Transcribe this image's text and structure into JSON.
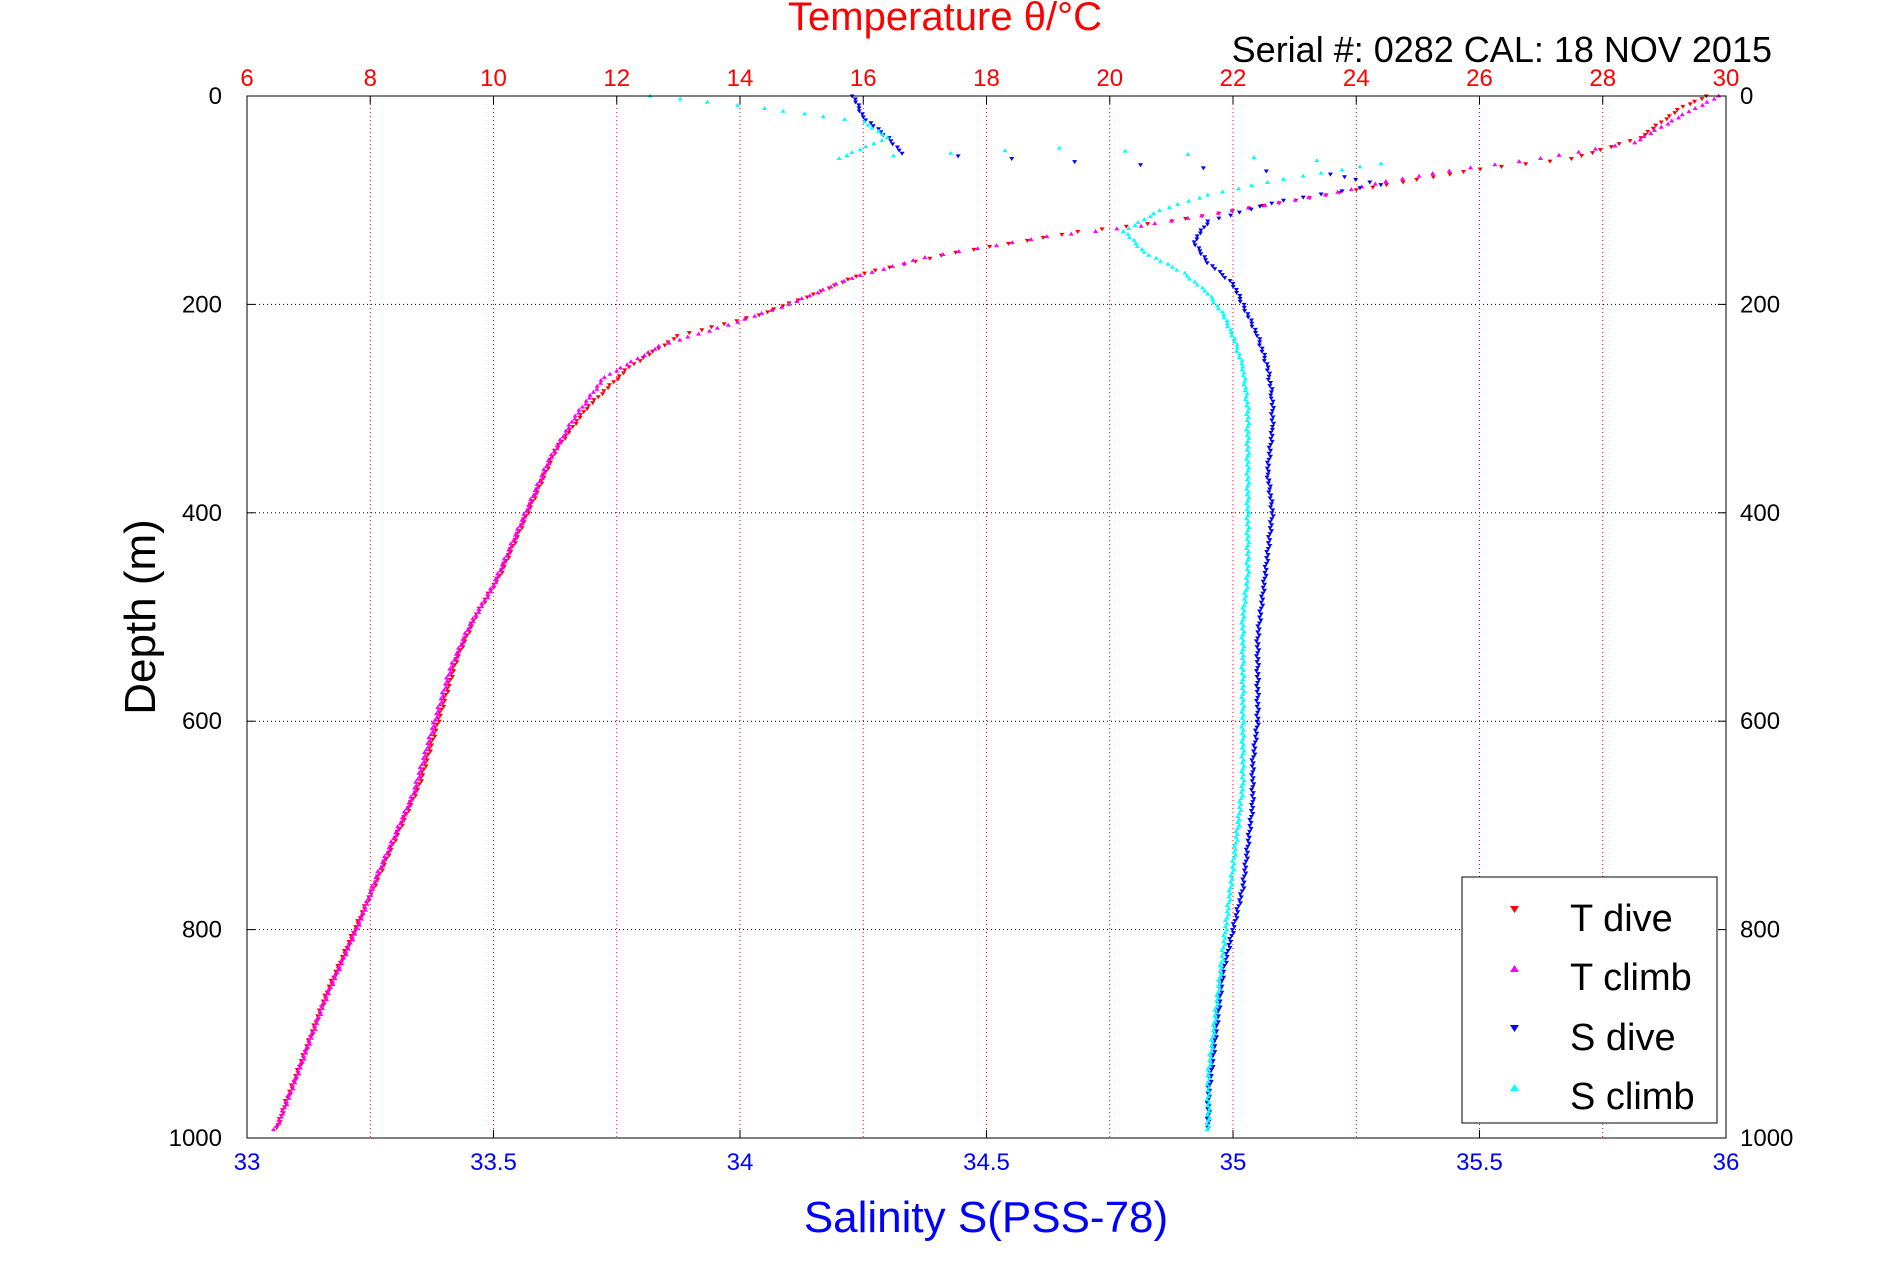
{
  "chart_data": {
    "type": "scatter",
    "title_top": "Temperature θ/°C",
    "subtitle": "Serial #: 0282  CAL: 18 NOV 2015",
    "ylabel": "Depth (m)",
    "xlabel_bottom": "Salinity S(PSS-78)",
    "ylim": [
      1000,
      0
    ],
    "salinity_lim": [
      33,
      36
    ],
    "temperature_lim": [
      6,
      30
    ],
    "depth_ticks": [
      0,
      200,
      400,
      600,
      800,
      1000
    ],
    "salinity_ticks": [
      33,
      33.5,
      34,
      34.5,
      35,
      35.5,
      36
    ],
    "temperature_ticks": [
      6,
      8,
      10,
      12,
      14,
      16,
      18,
      20,
      22,
      24,
      26,
      28,
      30
    ],
    "grid": true,
    "legend_position": "bottom-right",
    "series": [
      {
        "name": "T dive",
        "axis": "temperature",
        "color": "#ff0000",
        "marker": "triangle-down",
        "points": [
          [
            29.7,
            0
          ],
          [
            29.3,
            10
          ],
          [
            28.6,
            40
          ],
          [
            27.5,
            60
          ],
          [
            26.0,
            70
          ],
          [
            25.0,
            80
          ],
          [
            24.0,
            90
          ],
          [
            23.0,
            100
          ],
          [
            22.0,
            110
          ],
          [
            21.0,
            120
          ],
          [
            19.5,
            130
          ],
          [
            17.5,
            150
          ],
          [
            16.0,
            170
          ],
          [
            15.2,
            190
          ],
          [
            14.3,
            210
          ],
          [
            13.0,
            230
          ],
          [
            12.2,
            260
          ],
          [
            11.5,
            300
          ],
          [
            11.0,
            340
          ],
          [
            10.7,
            380
          ],
          [
            10.4,
            420
          ],
          [
            10.1,
            460
          ],
          [
            9.7,
            500
          ],
          [
            9.4,
            540
          ],
          [
            9.2,
            580
          ],
          [
            9.0,
            620
          ],
          [
            8.8,
            660
          ],
          [
            8.5,
            700
          ],
          [
            8.2,
            740
          ],
          [
            7.9,
            780
          ],
          [
            7.6,
            820
          ],
          [
            7.3,
            860
          ],
          [
            7.05,
            900
          ],
          [
            6.8,
            940
          ],
          [
            6.6,
            970
          ],
          [
            6.5,
            990
          ]
        ]
      },
      {
        "name": "T climb",
        "axis": "temperature",
        "color": "#ff00ff",
        "marker": "triangle-up",
        "points": [
          [
            29.9,
            0
          ],
          [
            29.4,
            15
          ],
          [
            28.5,
            45
          ],
          [
            27.0,
            60
          ],
          [
            25.5,
            72
          ],
          [
            24.5,
            82
          ],
          [
            23.5,
            95
          ],
          [
            22.5,
            105
          ],
          [
            21.5,
            115
          ],
          [
            20.5,
            125
          ],
          [
            19.0,
            135
          ],
          [
            17.0,
            155
          ],
          [
            15.8,
            175
          ],
          [
            14.8,
            200
          ],
          [
            13.8,
            220
          ],
          [
            12.7,
            240
          ],
          [
            11.8,
            270
          ],
          [
            11.3,
            310
          ],
          [
            10.9,
            350
          ],
          [
            10.6,
            390
          ],
          [
            10.3,
            430
          ],
          [
            10.0,
            470
          ],
          [
            9.6,
            510
          ],
          [
            9.3,
            550
          ],
          [
            9.1,
            590
          ],
          [
            8.9,
            630
          ],
          [
            8.7,
            670
          ],
          [
            8.4,
            710
          ],
          [
            8.1,
            750
          ],
          [
            7.85,
            790
          ],
          [
            7.55,
            830
          ],
          [
            7.25,
            870
          ],
          [
            7.0,
            910
          ],
          [
            6.75,
            950
          ],
          [
            6.55,
            980
          ],
          [
            6.45,
            992
          ]
        ]
      },
      {
        "name": "S dive",
        "axis": "salinity",
        "color": "#0000ff",
        "marker": "triangle-down",
        "points": [
          [
            34.23,
            0
          ],
          [
            34.25,
            20
          ],
          [
            34.3,
            40
          ],
          [
            34.33,
            55
          ],
          [
            34.55,
            60
          ],
          [
            35.2,
            75
          ],
          [
            35.3,
            85
          ],
          [
            35.1,
            100
          ],
          [
            34.95,
            120
          ],
          [
            34.92,
            140
          ],
          [
            34.95,
            160
          ],
          [
            35.0,
            180
          ],
          [
            35.02,
            200
          ],
          [
            35.05,
            230
          ],
          [
            35.07,
            260
          ],
          [
            35.08,
            290
          ],
          [
            35.08,
            320
          ],
          [
            35.07,
            360
          ],
          [
            35.08,
            400
          ],
          [
            35.07,
            440
          ],
          [
            35.06,
            480
          ],
          [
            35.05,
            520
          ],
          [
            35.05,
            560
          ],
          [
            35.05,
            600
          ],
          [
            35.04,
            640
          ],
          [
            35.04,
            680
          ],
          [
            35.03,
            720
          ],
          [
            35.02,
            760
          ],
          [
            35.0,
            800
          ],
          [
            34.98,
            840
          ],
          [
            34.97,
            880
          ],
          [
            34.96,
            920
          ],
          [
            34.95,
            960
          ],
          [
            34.95,
            990
          ]
        ]
      },
      {
        "name": "S climb",
        "axis": "salinity",
        "color": "#00ffff",
        "marker": "triangle-up",
        "points": [
          [
            33.82,
            0
          ],
          [
            34.05,
            12
          ],
          [
            34.25,
            25
          ],
          [
            34.3,
            40
          ],
          [
            34.2,
            60
          ],
          [
            34.65,
            50
          ],
          [
            35.3,
            65
          ],
          [
            35.1,
            80
          ],
          [
            34.95,
            95
          ],
          [
            34.85,
            110
          ],
          [
            34.78,
            130
          ],
          [
            34.82,
            150
          ],
          [
            34.9,
            170
          ],
          [
            34.95,
            190
          ],
          [
            34.98,
            210
          ],
          [
            35.0,
            230
          ],
          [
            35.02,
            260
          ],
          [
            35.03,
            300
          ],
          [
            35.03,
            340
          ],
          [
            35.03,
            380
          ],
          [
            35.03,
            420
          ],
          [
            35.03,
            460
          ],
          [
            35.02,
            500
          ],
          [
            35.02,
            540
          ],
          [
            35.02,
            580
          ],
          [
            35.02,
            620
          ],
          [
            35.02,
            660
          ],
          [
            35.01,
            700
          ],
          [
            35.0,
            740
          ],
          [
            34.99,
            780
          ],
          [
            34.98,
            820
          ],
          [
            34.97,
            860
          ],
          [
            34.96,
            900
          ],
          [
            34.95,
            940
          ],
          [
            34.95,
            975
          ],
          [
            34.95,
            992
          ]
        ]
      }
    ]
  }
}
